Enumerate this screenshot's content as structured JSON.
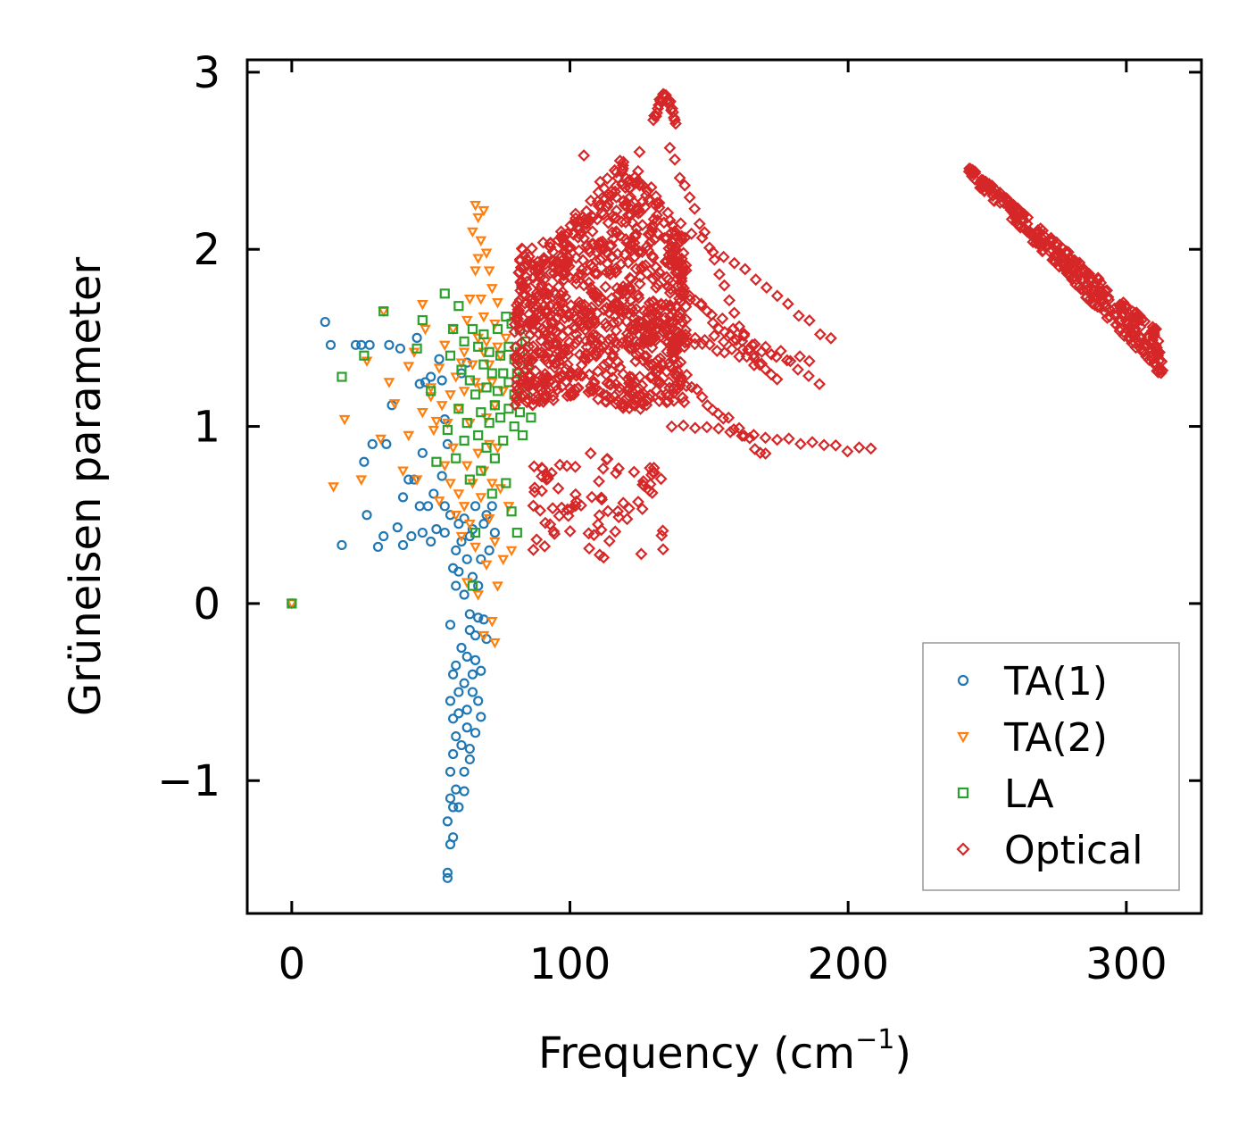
{
  "chart_data": {
    "type": "scatter",
    "xlabel": "Frequency (cm",
    "xlabel_sup": "−1",
    "xlabel_end": ")",
    "ylabel": "Grüneisen parameter",
    "xlim": [
      -16,
      327
    ],
    "ylim": [
      -1.75,
      3.07
    ],
    "xticks": [
      0,
      100,
      200,
      300
    ],
    "xtick_labels": [
      "0",
      "100",
      "200",
      "300"
    ],
    "yticks": [
      -1,
      0,
      1,
      2,
      3
    ],
    "ytick_labels": [
      "−1",
      "0",
      "1",
      "2",
      "3"
    ],
    "legend_position": "lower-right",
    "series": [
      {
        "name": "TA(1)",
        "marker": "circle",
        "color": "#1f77b4",
        "points": [
          [
            0,
            0
          ],
          [
            12,
            1.59
          ],
          [
            14,
            1.46
          ],
          [
            18,
            0.33
          ],
          [
            23,
            1.46
          ],
          [
            25,
            1.46
          ],
          [
            26,
            0.8
          ],
          [
            27,
            0.5
          ],
          [
            28,
            1.46
          ],
          [
            29,
            0.9
          ],
          [
            31,
            0.32
          ],
          [
            33,
            0.38
          ],
          [
            34,
            0.9
          ],
          [
            35,
            1.46
          ],
          [
            36,
            1.12
          ],
          [
            38,
            0.43
          ],
          [
            39,
            1.44
          ],
          [
            40,
            0.6
          ],
          [
            40,
            0.33
          ],
          [
            42,
            0.7
          ],
          [
            43,
            0.38
          ],
          [
            44,
            0.7
          ],
          [
            45,
            1.5
          ],
          [
            46,
            0.55
          ],
          [
            46,
            1.24
          ],
          [
            47,
            0.85
          ],
          [
            47,
            0.4
          ],
          [
            48,
            1.25
          ],
          [
            49,
            0.55
          ],
          [
            50,
            1.28
          ],
          [
            50,
            0.35
          ],
          [
            51,
            0.62
          ],
          [
            52,
            0.42
          ],
          [
            53,
            1.38
          ],
          [
            54,
            1.26
          ],
          [
            54,
            0.72
          ],
          [
            55,
            0.55
          ],
          [
            55,
            0.4
          ],
          [
            55,
            1.04
          ],
          [
            56,
            0.9
          ],
          [
            57,
            0.5
          ],
          [
            56,
            -1.55
          ],
          [
            56,
            -1.52
          ],
          [
            56,
            -1.23
          ],
          [
            57,
            -1.36
          ],
          [
            57,
            -1.1
          ],
          [
            57,
            -0.95
          ],
          [
            57,
            -0.55
          ],
          [
            57,
            -0.12
          ],
          [
            58,
            -1.15
          ],
          [
            58,
            -1.32
          ],
          [
            58,
            -0.65
          ],
          [
            58,
            -0.4
          ],
          [
            58,
            0.2
          ],
          [
            58,
            -0.85
          ],
          [
            59,
            0.3
          ],
          [
            59,
            0.1
          ],
          [
            59,
            -0.75
          ],
          [
            59,
            -1.05
          ],
          [
            59,
            -0.35
          ],
          [
            60,
            -0.5
          ],
          [
            60,
            0.45
          ],
          [
            60,
            -0.62
          ],
          [
            60,
            -1.15
          ],
          [
            60,
            0.18
          ],
          [
            61,
            0.35
          ],
          [
            61,
            -0.25
          ],
          [
            61,
            -0.8
          ],
          [
            61,
            1.3
          ],
          [
            62,
            0.05
          ],
          [
            62,
            -0.45
          ],
          [
            62,
            -0.95
          ],
          [
            62,
            0.48
          ],
          [
            62,
            -1.06
          ],
          [
            63,
            -0.3
          ],
          [
            63,
            -0.7
          ],
          [
            63,
            1.36
          ],
          [
            63,
            0.25
          ],
          [
            63,
            -0.6
          ],
          [
            64,
            -0.06
          ],
          [
            64,
            -0.88
          ],
          [
            64,
            0.38
          ],
          [
            64,
            -0.15
          ],
          [
            64,
            -0.82
          ],
          [
            65,
            -0.5
          ],
          [
            65,
            0.15
          ],
          [
            65,
            -0.4
          ],
          [
            65,
            0.42
          ],
          [
            66,
            -0.18
          ],
          [
            66,
            -0.73
          ],
          [
            66,
            -0.32
          ],
          [
            66,
            0.55
          ],
          [
            67,
            0.1
          ],
          [
            67,
            -0.55
          ],
          [
            67,
            -0.08
          ],
          [
            68,
            0.25
          ],
          [
            68,
            -0.64
          ],
          [
            68,
            -0.38
          ],
          [
            69,
            0.45
          ],
          [
            69,
            -0.09
          ],
          [
            70,
            0.5
          ],
          [
            70,
            -0.2
          ],
          [
            71,
            0.3
          ],
          [
            72,
            0.55
          ],
          [
            73,
            0.4
          ]
        ]
      },
      {
        "name": "TA(2)",
        "marker": "triangle-down",
        "color": "#ff7f0e",
        "points": [
          [
            0,
            0
          ],
          [
            15,
            0.66
          ],
          [
            19,
            1.04
          ],
          [
            25,
            0.7
          ],
          [
            27,
            1.37
          ],
          [
            32,
            0.93
          ],
          [
            33,
            1.65
          ],
          [
            35,
            1.25
          ],
          [
            37,
            1.13
          ],
          [
            40,
            0.75
          ],
          [
            42,
            0.95
          ],
          [
            42,
            1.34
          ],
          [
            44,
            1.42
          ],
          [
            45,
            0.7
          ],
          [
            47,
            1.08
          ],
          [
            47,
            1.69
          ],
          [
            48,
            1.55
          ],
          [
            50,
            1.17
          ],
          [
            50,
            1.22
          ],
          [
            51,
            0.98
          ],
          [
            52,
            1.03
          ],
          [
            53,
            1.33
          ],
          [
            53,
            0.58
          ],
          [
            54,
            1.12
          ],
          [
            55,
            1.46
          ],
          [
            55,
            0.78
          ],
          [
            56,
            1.02
          ],
          [
            57,
            1.18
          ],
          [
            57,
            0.68
          ],
          [
            58,
            1.55
          ],
          [
            58,
            0.88
          ],
          [
            59,
            1.28
          ],
          [
            59,
            0.5
          ],
          [
            60,
            0.62
          ],
          [
            60,
            1.1
          ],
          [
            61,
            0.38
          ],
          [
            61,
            1.36
          ],
          [
            62,
            0.55
          ],
          [
            62,
            1.42
          ],
          [
            62,
            1.2
          ],
          [
            63,
            1.6
          ],
          [
            63,
            0.78
          ],
          [
            63,
            0.12
          ],
          [
            64,
            1.72
          ],
          [
            64,
            0.45
          ],
          [
            64,
            1.02
          ],
          [
            65,
            2.1
          ],
          [
            65,
            1.35
          ],
          [
            65,
            0.68
          ],
          [
            66,
            2.25
          ],
          [
            66,
            1.88
          ],
          [
            66,
            0.32
          ],
          [
            66,
            1.25
          ],
          [
            67,
            2.18
          ],
          [
            67,
            1.95
          ],
          [
            67,
            1.5
          ],
          [
            67,
            0.85
          ],
          [
            67,
            0.05
          ],
          [
            68,
            2.05
          ],
          [
            68,
            1.72
          ],
          [
            68,
            1.22
          ],
          [
            68,
            0.6
          ],
          [
            69,
            2.22
          ],
          [
            69,
            1.62
          ],
          [
            69,
            1.42
          ],
          [
            69,
            0.75
          ],
          [
            69,
            -0.18
          ],
          [
            70,
            1.98
          ],
          [
            70,
            1.48
          ],
          [
            70,
            1.05
          ],
          [
            70,
            0.22
          ],
          [
            71,
            1.88
          ],
          [
            71,
            1.35
          ],
          [
            71,
            0.9
          ],
          [
            71,
            0.48
          ],
          [
            72,
            1.78
          ],
          [
            72,
            1.25
          ],
          [
            72,
            0.68
          ],
          [
            72,
            -0.1
          ],
          [
            73,
            1.58
          ],
          [
            73,
            1.12
          ],
          [
            73,
            0.35
          ],
          [
            73,
            -0.22
          ],
          [
            74,
            1.7
          ],
          [
            74,
            1.45
          ],
          [
            74,
            0.88
          ],
          [
            74,
            0.1
          ],
          [
            75,
            1.4
          ],
          [
            75,
            0.65
          ],
          [
            76,
            1.2
          ],
          [
            76,
            0.25
          ],
          [
            77,
            1.5
          ],
          [
            78,
            0.55
          ],
          [
            79,
            0.3
          ]
        ]
      },
      {
        "name": "LA",
        "marker": "square",
        "color": "#2ca02c",
        "points": [
          [
            0,
            0
          ],
          [
            18,
            1.28
          ],
          [
            26,
            1.4
          ],
          [
            33,
            1.65
          ],
          [
            45,
            1.44
          ],
          [
            47,
            1.6
          ],
          [
            50,
            1.2
          ],
          [
            52,
            0.8
          ],
          [
            55,
            1.75
          ],
          [
            56,
            0.98
          ],
          [
            57,
            1.4
          ],
          [
            58,
            1.55
          ],
          [
            59,
            0.82
          ],
          [
            60,
            1.68
          ],
          [
            60,
            1.1
          ],
          [
            61,
            1.32
          ],
          [
            62,
            0.92
          ],
          [
            62,
            1.48
          ],
          [
            63,
            1.02
          ],
          [
            64,
            1.26
          ],
          [
            64,
            0.7
          ],
          [
            65,
            1.55
          ],
          [
            65,
            0.1
          ],
          [
            66,
            1.18
          ],
          [
            66,
            0.4
          ],
          [
            67,
            0.95
          ],
          [
            67,
            1.45
          ],
          [
            68,
            1.08
          ],
          [
            68,
            0.75
          ],
          [
            69,
            1.35
          ],
          [
            69,
            1.52
          ],
          [
            70,
            0.88
          ],
          [
            70,
            1.22
          ],
          [
            71,
            1.42
          ],
          [
            71,
            1.02
          ],
          [
            72,
            0.62
          ],
          [
            72,
            1.3
          ],
          [
            73,
            1.12
          ],
          [
            73,
            0.82
          ],
          [
            74,
            1.55
          ],
          [
            74,
            1.2
          ],
          [
            75,
            1.05
          ],
          [
            75,
            1.4
          ],
          [
            76,
            1.3
          ],
          [
            76,
            0.92
          ],
          [
            77,
            1.62
          ],
          [
            77,
            0.68
          ],
          [
            78,
            1.45
          ],
          [
            78,
            1.1
          ],
          [
            78,
            1.25
          ],
          [
            79,
            0.52
          ],
          [
            79,
            1.58
          ],
          [
            80,
            1.38
          ],
          [
            80,
            1.0
          ],
          [
            80,
            1.18
          ],
          [
            81,
            1.62
          ],
          [
            81,
            1.3
          ],
          [
            81,
            0.4
          ],
          [
            82,
            1.55
          ],
          [
            82,
            1.08
          ],
          [
            82,
            1.42
          ],
          [
            83,
            1.28
          ],
          [
            83,
            0.95
          ],
          [
            84,
            1.48
          ],
          [
            84,
            1.18
          ],
          [
            85,
            1.35
          ],
          [
            86,
            1.05
          ]
        ]
      },
      {
        "name": "Optical",
        "marker": "diamond",
        "color": "#d62728",
        "points": []
      }
    ]
  }
}
